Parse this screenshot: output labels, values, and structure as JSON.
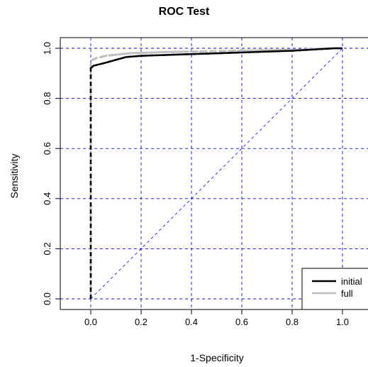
{
  "chart_data": {
    "type": "line",
    "title": "ROC Test",
    "xlabel": "1-Specificity",
    "ylabel": "Sensitivity",
    "xlim": [
      -0.12,
      1.1
    ],
    "ylim": [
      -0.04,
      1.05
    ],
    "xticks": [
      "0.0",
      "0.2",
      "0.4",
      "0.6",
      "0.8",
      "1.0"
    ],
    "yticks": [
      "0.0",
      "0.2",
      "0.4",
      "0.6",
      "0.8",
      "1.0"
    ],
    "grid": true,
    "grid_color": "#0000ff",
    "series": [
      {
        "name": "initial",
        "color": "#000000",
        "style": "solid",
        "x": [
          0.0,
          0.0,
          0.0,
          0.01,
          0.05,
          0.14,
          0.2,
          0.5,
          0.8,
          0.97,
          1.0
        ],
        "y": [
          0.0,
          0.9,
          0.92,
          0.93,
          0.94,
          0.965,
          0.97,
          0.98,
          0.99,
          1.0,
          1.0
        ]
      },
      {
        "name": "full",
        "color": "#c0c0c0",
        "style": "solid",
        "x": [
          0.0,
          0.0,
          0.0,
          0.02,
          0.06,
          0.15,
          0.3,
          0.6,
          0.85,
          0.95,
          1.0
        ],
        "y": [
          0.0,
          0.9,
          0.95,
          0.96,
          0.97,
          0.98,
          0.985,
          0.99,
          0.995,
          1.0,
          1.0
        ]
      }
    ],
    "reference_line": {
      "x": [
        0.0,
        1.0
      ],
      "y": [
        0.0,
        1.0
      ],
      "color": "#0000ff",
      "style": "dashed"
    },
    "legend": {
      "position": "bottom-right",
      "entries": [
        "initial",
        "full"
      ]
    }
  }
}
